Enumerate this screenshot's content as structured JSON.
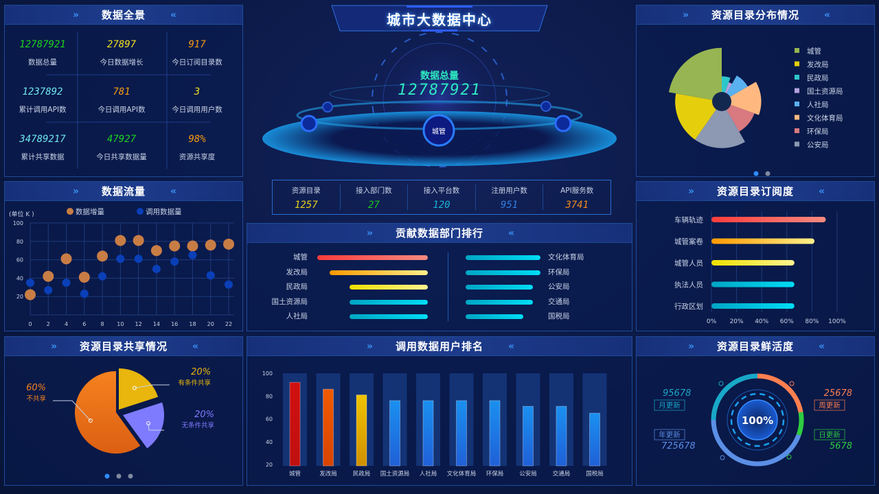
{
  "title": "城市大数据中心",
  "globe": {
    "label": "数据总量",
    "value": "12787921",
    "node": "城管"
  },
  "overview": {
    "title": "数据全景",
    "items": [
      {
        "value": "12787921",
        "label": "数据总量",
        "color": "#1ed31e"
      },
      {
        "value": "27897",
        "label": "今日数据增长",
        "color": "#f0e020"
      },
      {
        "value": "917",
        "label": "今日订阅目录数",
        "color": "#f39c12"
      },
      {
        "value": "1237892",
        "label": "累计调用API数",
        "color": "#6fe6f0"
      },
      {
        "value": "781",
        "label": "今日调用API数",
        "color": "#f39c12"
      },
      {
        "value": "3",
        "label": "今日调用用户数",
        "color": "#f0e020"
      },
      {
        "value": "34789217",
        "label": "累计共享数据",
        "color": "#6fe6f0"
      },
      {
        "value": "47927",
        "label": "今日共享数据量",
        "color": "#1ed31e"
      },
      {
        "value": "98%",
        "label": "资源共享度",
        "color": "#f39c12"
      }
    ]
  },
  "summary": [
    {
      "label": "资源目录",
      "value": "1257",
      "color": "#e6d21a"
    },
    {
      "label": "接入部门数",
      "value": "27",
      "color": "#1ec81e"
    },
    {
      "label": "接入平台数",
      "value": "120",
      "color": "#17b6d8"
    },
    {
      "label": "注册用户数",
      "value": "951",
      "color": "#2f7de0"
    },
    {
      "label": "API服务数",
      "value": "3741",
      "color": "#f08c1a"
    }
  ],
  "flow": {
    "title": "数据流量",
    "unit": "(单位 K )"
  },
  "contrib": {
    "title": "贡献数据部门排行",
    "left": [
      {
        "name": "城管",
        "value": 100,
        "grad": [
          "#ff3c3c",
          "#f58a80"
        ]
      },
      {
        "name": "发改局",
        "value": 89,
        "grad": [
          "#ff9a00",
          "#fff08a"
        ]
      },
      {
        "name": "民政局",
        "value": 71,
        "grad": [
          "#f0e000",
          "#fff590"
        ]
      },
      {
        "name": "国土资源局",
        "value": 71,
        "grad": [
          "#00a6c4",
          "#00dcf5"
        ]
      },
      {
        "name": "人社局",
        "value": 71,
        "grad": [
          "#00a6c4",
          "#00dcf5"
        ]
      }
    ],
    "right": [
      {
        "name": "文化体育局",
        "value": 68
      },
      {
        "name": "环保局",
        "value": 68
      },
      {
        "name": "公安局",
        "value": 61
      },
      {
        "name": "交通局",
        "value": 61
      },
      {
        "name": "国税局",
        "value": 52
      }
    ]
  },
  "catalog_dist": {
    "title": "资源目录分布情况",
    "page_dots": 2,
    "active_dot": 0
  },
  "subscription": {
    "title": "资源目录订阅度"
  },
  "share": {
    "title": "资源目录共享情况",
    "page_dots": 3,
    "active_dot": 0
  },
  "call_rank": {
    "title": "调用数据用户排名"
  },
  "fresh": {
    "title": "资源目录鲜活度",
    "center": "100%",
    "items": [
      {
        "label": "月更新",
        "value": "95678",
        "color": "#19a8c8"
      },
      {
        "label": "周更新",
        "value": "25678",
        "color": "#ff7f50"
      },
      {
        "label": "日更新",
        "value": "5678",
        "color": "#2ecc40"
      },
      {
        "label": "年更新",
        "value": "725678",
        "color": "#5b8fe6"
      }
    ]
  },
  "chart_data": [
    {
      "type": "scatter",
      "ylabel": "(单位 K )",
      "xlim": [
        0,
        22
      ],
      "ylim": [
        0,
        100
      ],
      "xticks": [
        0,
        2,
        4,
        6,
        8,
        10,
        12,
        14,
        16,
        18,
        20,
        22
      ],
      "yticks": [
        20,
        40,
        60,
        80,
        100
      ],
      "grid": true,
      "legend": "top",
      "series": [
        {
          "name": "数据增量",
          "color": "#c87d45",
          "points": [
            [
              0,
              22
            ],
            [
              2,
              42
            ],
            [
              4,
              61
            ],
            [
              6,
              41
            ],
            [
              8,
              64
            ],
            [
              10,
              81
            ],
            [
              12,
              81
            ],
            [
              14,
              70
            ],
            [
              16,
              75
            ],
            [
              18,
              75
            ],
            [
              20,
              76
            ],
            [
              22,
              77
            ]
          ]
        },
        {
          "name": "调用数据量",
          "color": "#0a3fb8",
          "points": [
            [
              0,
              35
            ],
            [
              2,
              27
            ],
            [
              4,
              35
            ],
            [
              6,
              23
            ],
            [
              8,
              42
            ],
            [
              10,
              61
            ],
            [
              12,
              61
            ],
            [
              14,
              50
            ],
            [
              16,
              58
            ],
            [
              18,
              65
            ],
            [
              20,
              43
            ],
            [
              22,
              33
            ]
          ]
        }
      ]
    },
    {
      "type": "pie",
      "rose": true,
      "legend": "right",
      "categories": [
        "城管",
        "发改局",
        "民政局",
        "国土资源局",
        "人社局",
        "文化体育局",
        "环保局",
        "公安局"
      ],
      "values": [
        80,
        65,
        20,
        10,
        30,
        50,
        40,
        65
      ],
      "colors": [
        "#97b552",
        "#e5cf0d",
        "#2ec7c9",
        "#b6a2de",
        "#5ab1ef",
        "#ffb980",
        "#d87a80",
        "#8d98b3"
      ]
    },
    {
      "type": "bar",
      "orientation": "horizontal",
      "categories": [
        "车辆轨迹",
        "城管案卷",
        "城管人员",
        "执法人员",
        "行政区划"
      ],
      "values": [
        91,
        82,
        66,
        66,
        66
      ],
      "xlim": [
        0,
        100
      ],
      "xticks": [
        "0%",
        "20%",
        "40%",
        "60%",
        "80%",
        "100%"
      ],
      "grads": [
        [
          "#ff3c3c",
          "#f58a80"
        ],
        [
          "#ff9a00",
          "#fff08a"
        ],
        [
          "#f0e000",
          "#fff590"
        ],
        [
          "#00a6c4",
          "#00dcf5"
        ],
        [
          "#00a6c4",
          "#00dcf5"
        ]
      ]
    },
    {
      "type": "pie",
      "categories": [
        "有条件共享",
        "无条件共享",
        "不共享"
      ],
      "values": [
        20,
        20,
        60
      ],
      "labels": [
        "20%",
        "20%",
        "60%"
      ],
      "colors": [
        "#e8b60c",
        "#7f7bff",
        "#f5821f"
      ]
    },
    {
      "type": "bar",
      "categories": [
        "城管",
        "发改局",
        "民政局",
        "国土资源局",
        "人社局",
        "文化体育局",
        "环保局",
        "公安局",
        "交通局",
        "国税局"
      ],
      "values": [
        92,
        86,
        81,
        76,
        76,
        76,
        76,
        71,
        71,
        65
      ],
      "ylim": [
        20,
        100
      ],
      "yticks": [
        20,
        40,
        60,
        80,
        100
      ],
      "colors": [
        [
          "#d01010",
          "#c01010"
        ],
        [
          "#f05a00",
          "#d84400"
        ],
        [
          "#f0c400",
          "#d09000"
        ],
        [
          "#1a90f0",
          "#2060d8"
        ],
        [
          "#1a90f0",
          "#2060d8"
        ],
        [
          "#1a90f0",
          "#2060d8"
        ],
        [
          "#1a90f0",
          "#2060d8"
        ],
        [
          "#1a90f0",
          "#2060d8"
        ],
        [
          "#1a90f0",
          "#2060d8"
        ],
        [
          "#1a90f0",
          "#2060d8"
        ]
      ]
    }
  ]
}
